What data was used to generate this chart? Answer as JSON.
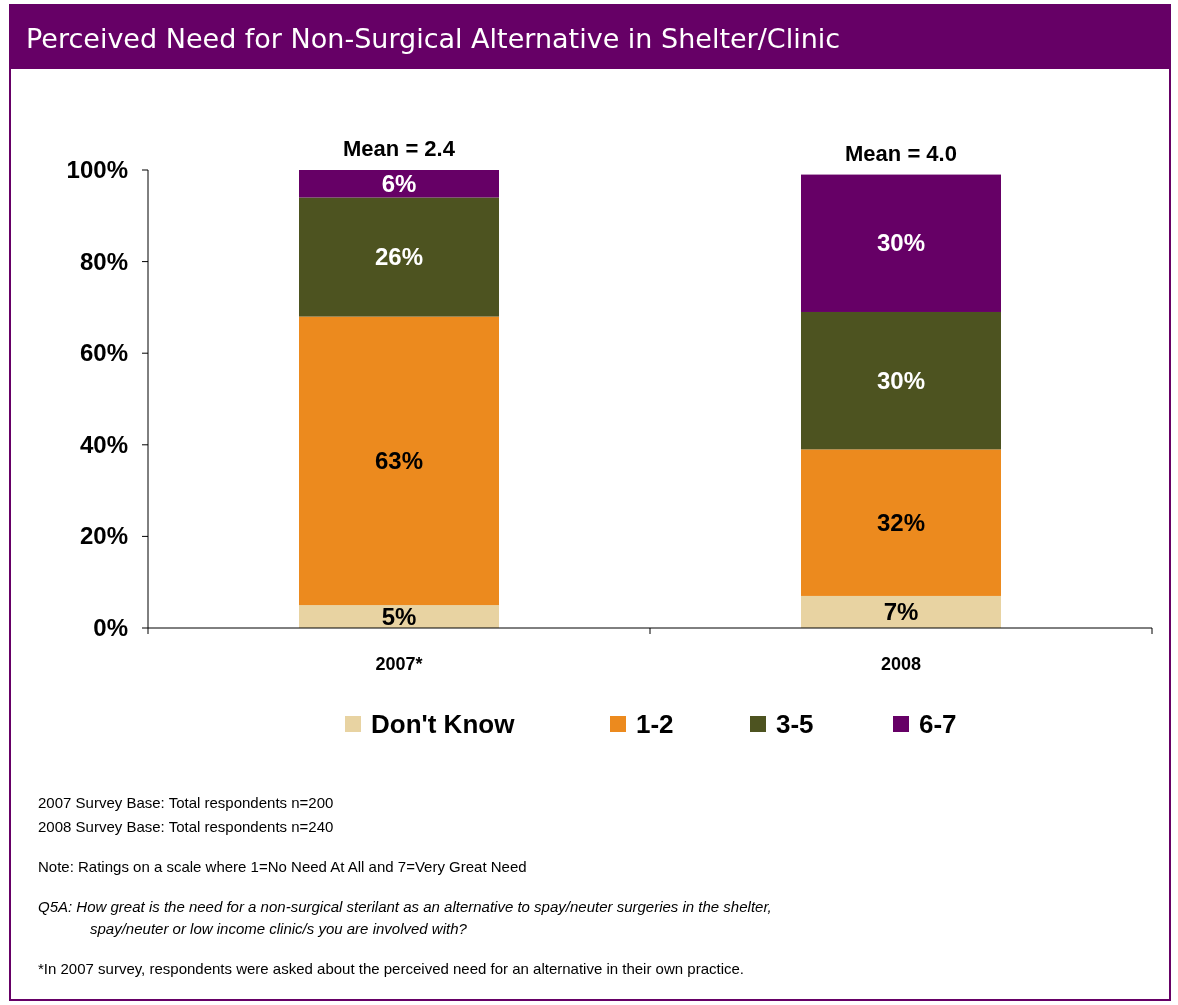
{
  "chart_data": {
    "type": "bar",
    "title": "Perceived Need for Non-Surgical Alternative in Shelter/Clinic",
    "categories": [
      "2007*",
      "2008"
    ],
    "stacked": true,
    "ylim": [
      0,
      100
    ],
    "yticks": [
      {
        "value": 0,
        "label": "0%"
      },
      {
        "value": 20,
        "label": "20%"
      },
      {
        "value": 40,
        "label": "40%"
      },
      {
        "value": 60,
        "label": "60%"
      },
      {
        "value": 80,
        "label": "80%"
      },
      {
        "value": 100,
        "label": "100%"
      }
    ],
    "grid": false,
    "legend": "bottom",
    "series": [
      {
        "name": "Don't Know",
        "color": "#e8d3a2",
        "values": [
          5,
          7
        ],
        "value_labels": [
          "5%",
          "7%"
        ]
      },
      {
        "name": "1-2",
        "color": "#ec8a1e",
        "values": [
          63,
          32
        ],
        "value_labels": [
          "63%",
          "32%"
        ]
      },
      {
        "name": "3-5",
        "color": "#4d5320",
        "values": [
          26,
          30
        ],
        "value_labels": [
          "26%",
          "30%"
        ]
      },
      {
        "name": "6-7",
        "color": "#660066",
        "values": [
          6,
          30
        ],
        "value_labels": [
          "6%",
          "30%"
        ]
      }
    ],
    "annotations": [
      {
        "text": "Mean = 2.4",
        "x": "2007*",
        "y": 100
      },
      {
        "text": "Mean = 4.0",
        "x": "2008",
        "y": 99
      },
      "2007 Survey Base: Total respondents n=200",
      "2008 Survey Base: Total respondents n=240",
      "Note:  Ratings on a scale where 1=No Need At All and 7=Very Great Need",
      "Q5A: How great is the need for a non-surgical sterilant as an alternative to spay/neuter surgeries in the shelter, spay/neuter or low income clinic/s you are involved with?",
      "*In 2007 survey, respondents were asked about the perceived need for an alternative in their own practice."
    ]
  }
}
